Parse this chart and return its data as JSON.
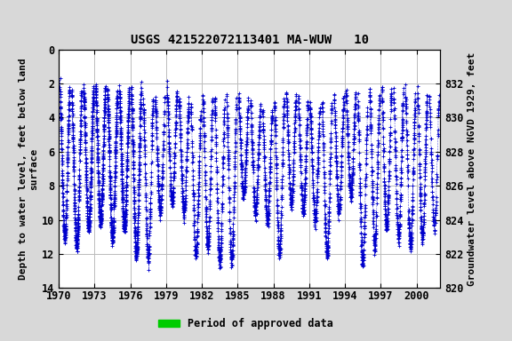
{
  "title": "USGS 421522072113401 MA-WUW   10",
  "ylabel_left": "Depth to water level, feet below land\nsurface",
  "ylabel_right": "Groundwater level above NGVD 1929, feet",
  "xlim": [
    1970,
    2002
  ],
  "ylim_left": [
    14,
    0
  ],
  "ylim_right": [
    820,
    834
  ],
  "xticks": [
    1970,
    1973,
    1976,
    1979,
    1982,
    1985,
    1988,
    1991,
    1994,
    1997,
    2000
  ],
  "yticks_left": [
    0,
    2,
    4,
    6,
    8,
    10,
    12,
    14
  ],
  "yticks_right": [
    820,
    822,
    824,
    826,
    828,
    830,
    832
  ],
  "legend_label": "Period of approved data",
  "legend_color": "#00cc00",
  "data_color": "#0000cc",
  "background_color": "#d8d8d8",
  "plot_bg_color": "#ffffff",
  "title_fontsize": 10,
  "axis_label_fontsize": 8,
  "tick_fontsize": 8.5,
  "surface_level": 834.0
}
